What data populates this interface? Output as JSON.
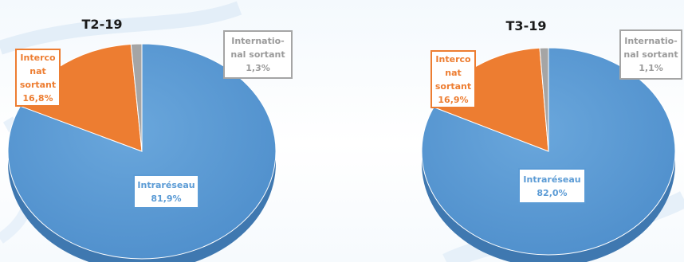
{
  "colors": {
    "intra": "#5b9bd5",
    "interco": "#ed7d31",
    "intl": "#a5a5a5"
  },
  "chart_data": [
    {
      "type": "pie",
      "title": "T2-19",
      "slices": [
        {
          "name": "Intraréseau",
          "value": 81.9,
          "label_name": "Intraréseau",
          "label_value": "81,9%"
        },
        {
          "name": "Interco nat sortant",
          "value": 16.8,
          "label_name": "Interco\nnat\nsortant",
          "label_value": "16,8%"
        },
        {
          "name": "International sortant",
          "value": 1.3,
          "label_name": "Internatio-\nnal sortant",
          "label_value": "1,3%"
        }
      ]
    },
    {
      "type": "pie",
      "title": "T3-19",
      "slices": [
        {
          "name": "Intraréseau",
          "value": 82.0,
          "label_name": "Intraréseau",
          "label_value": "82,0%"
        },
        {
          "name": "Interco nat sortant",
          "value": 16.9,
          "label_name": "Interco\nnat\nsortant",
          "label_value": "16,9%"
        },
        {
          "name": "International sortant",
          "value": 1.1,
          "label_name": "Internatio-\nnal sortant",
          "label_value": "1,1%"
        }
      ]
    }
  ]
}
